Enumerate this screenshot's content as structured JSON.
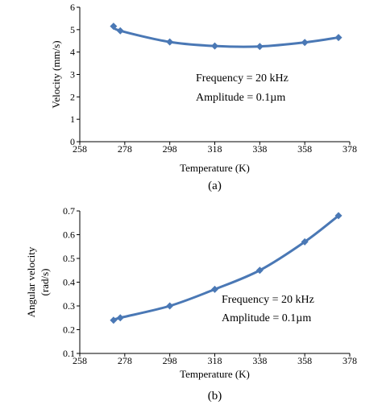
{
  "colors": {
    "series": "#4a78b5",
    "axis": "#000000"
  },
  "chart_data": [
    {
      "type": "line",
      "panel_label": "(a)",
      "xlabel": "Temperature (K)",
      "ylabel": "Velocity (mm/s)",
      "xlim": [
        258,
        378
      ],
      "ylim": [
        0,
        6
      ],
      "xticks": [
        258,
        278,
        298,
        318,
        338,
        358,
        378
      ],
      "yticks": [
        0,
        1,
        2,
        3,
        4,
        5,
        6
      ],
      "grid": false,
      "marker": "diamond",
      "smooth": true,
      "annotations": [
        "Frequency = 20 kHz",
        "Amplitude = 0.1µm"
      ],
      "series": [
        {
          "x": [
            273,
            276,
            298,
            318,
            338,
            358,
            373
          ],
          "y": [
            5.15,
            4.95,
            4.45,
            4.27,
            4.25,
            4.43,
            4.65
          ]
        }
      ]
    },
    {
      "type": "line",
      "panel_label": "(b)",
      "xlabel": "Temperature (K)",
      "ylabel": [
        "Angular velocity",
        "(rad/s)"
      ],
      "xlim": [
        258,
        378
      ],
      "ylim": [
        0.1,
        0.7
      ],
      "xticks": [
        258,
        278,
        298,
        318,
        338,
        358,
        378
      ],
      "yticks": [
        0.1,
        0.2,
        0.3,
        0.4,
        0.5,
        0.6,
        0.7
      ],
      "grid": false,
      "marker": "diamond",
      "smooth": true,
      "annotations": [
        "Frequency = 20 kHz",
        "Amplitude = 0.1µm"
      ],
      "series": [
        {
          "x": [
            273,
            276,
            298,
            318,
            338,
            358,
            373
          ],
          "y": [
            0.24,
            0.25,
            0.3,
            0.37,
            0.45,
            0.57,
            0.68
          ]
        }
      ]
    }
  ]
}
